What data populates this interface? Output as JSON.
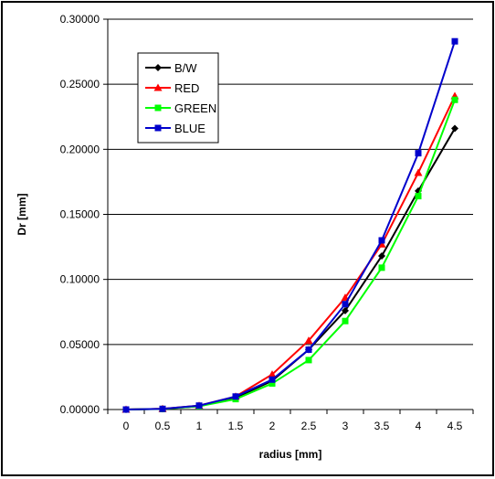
{
  "chart_data": {
    "type": "line",
    "title": "",
    "xlabel": "radius [mm]",
    "ylabel": "Dr [mm]",
    "categories": [
      "0",
      "0.5",
      "1",
      "1.5",
      "2",
      "2.5",
      "3",
      "3.5",
      "4",
      "4.5"
    ],
    "ylim": [
      0,
      0.3
    ],
    "yticks": [
      "0.00000",
      "0.05000",
      "0.10000",
      "0.15000",
      "0.20000",
      "0.25000",
      "0.30000"
    ],
    "grid": "horizontal",
    "legend_position": "top-left",
    "series": [
      {
        "name": "B/W",
        "color": "#000000",
        "marker": "diamond",
        "values": [
          0,
          0.0005,
          0.0025,
          0.009,
          0.022,
          0.046,
          0.076,
          0.118,
          0.168,
          0.216
        ]
      },
      {
        "name": "RED",
        "color": "#ff0000",
        "marker": "triangle",
        "values": [
          0,
          0.0005,
          0.003,
          0.01,
          0.027,
          0.053,
          0.086,
          0.127,
          0.182,
          0.241
        ]
      },
      {
        "name": "GREEN",
        "color": "#00ff00",
        "marker": "square",
        "values": [
          0,
          0.0004,
          0.0025,
          0.008,
          0.02,
          0.038,
          0.068,
          0.109,
          0.164,
          0.238
        ]
      },
      {
        "name": "BLUE",
        "color": "#0000cc",
        "marker": "square",
        "values": [
          0,
          0.0005,
          0.003,
          0.01,
          0.023,
          0.046,
          0.081,
          0.13,
          0.197,
          0.283
        ]
      }
    ]
  }
}
